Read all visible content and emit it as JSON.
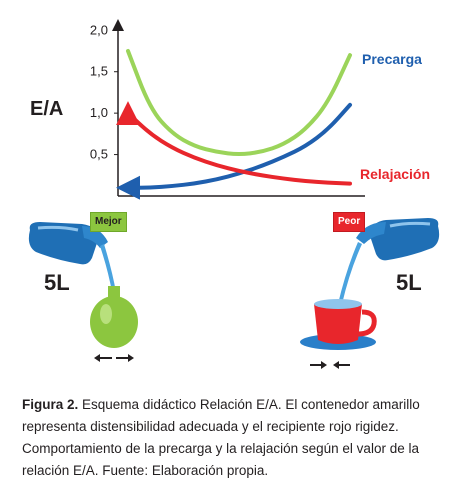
{
  "chart_data": {
    "type": "line",
    "ylabel": "E/A",
    "y_ticks": [
      "2,0",
      "1,5",
      "1,0",
      "0,5"
    ],
    "y_tick_values": [
      2.0,
      1.5,
      1.0,
      0.5
    ],
    "ylim": [
      0,
      2.1
    ],
    "grid": false,
    "series": [
      {
        "name": "Precarga",
        "color": "#1f5fae",
        "x": [
          0,
          0.1,
          0.2,
          0.3,
          0.4,
          0.5,
          0.6,
          0.7,
          0.8,
          0.9,
          1.0
        ],
        "values": [
          0.1,
          0.1,
          0.12,
          0.15,
          0.2,
          0.27,
          0.36,
          0.47,
          0.6,
          0.8,
          1.1
        ]
      },
      {
        "name": "Relajación",
        "color": "#e8262c",
        "x": [
          0,
          0.1,
          0.2,
          0.3,
          0.4,
          0.5,
          0.6,
          0.7,
          0.8,
          0.9,
          1.0
        ],
        "values": [
          1.0,
          0.75,
          0.58,
          0.46,
          0.37,
          0.3,
          0.25,
          0.21,
          0.18,
          0.16,
          0.15
        ]
      },
      {
        "color": "#9bd45a",
        "x": [
          0,
          0.1,
          0.2,
          0.3,
          0.4,
          0.5,
          0.6,
          0.7,
          0.8,
          0.9,
          1.0
        ],
        "values": [
          1.75,
          1.05,
          0.75,
          0.6,
          0.53,
          0.5,
          0.53,
          0.62,
          0.8,
          1.12,
          1.7
        ]
      }
    ]
  },
  "labels": {
    "good": "Mejor",
    "bad": "Peor",
    "volume_left": "5L",
    "volume_right": "5L"
  },
  "caption": {
    "figure": "Figura 2.",
    "text": "Esquema didáctico Relación E/A. El contenedor amarillo representa distensibilidad adecuada y el recipiente rojo rigidez. Comportamiento de la precarga y la relajación según el valor de la relación E/A. Fuente: Elaboración propia."
  },
  "colors": {
    "pitcher": "#1f6fb5",
    "water": "#4aa3df",
    "flask": "#8cc63f",
    "cup": "#e8262c",
    "saucer": "#2a7fc9"
  },
  "icons": [
    "arrow-left-icon",
    "arrow-right-icon",
    "pitcher-icon",
    "flask-icon",
    "cup-icon"
  ]
}
